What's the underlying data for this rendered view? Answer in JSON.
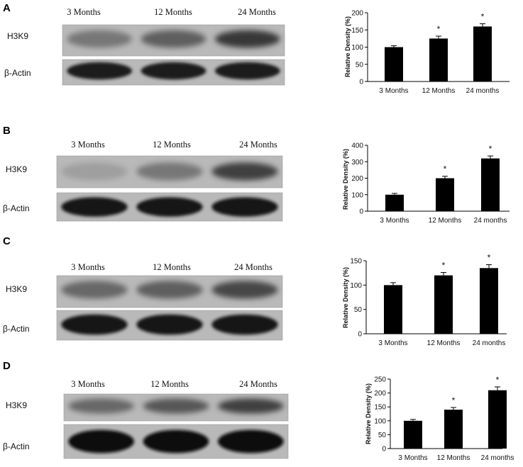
{
  "panels": [
    {
      "letter": "A",
      "blot": {
        "lanes": [
          "3 Months",
          "12 Months",
          "24 Months"
        ],
        "rows": [
          "H3K9",
          "β-Actin"
        ],
        "band_intensity": {
          "H3K9": [
            0.35,
            0.5,
            0.75
          ],
          "β-Actin": [
            0.9,
            0.9,
            0.9
          ]
        }
      }
    },
    {
      "letter": "B",
      "blot": {
        "lanes": [
          "3 Months",
          "12 Months",
          "24 Months"
        ],
        "rows": [
          "H3K9",
          "β-Actin"
        ],
        "band_intensity": {
          "H3K9": [
            0.1,
            0.35,
            0.7
          ],
          "β-Actin": [
            0.95,
            0.95,
            0.95
          ]
        }
      }
    },
    {
      "letter": "C",
      "blot": {
        "lanes": [
          "3 Months",
          "12 Months",
          "24 Months"
        ],
        "rows": [
          "H3K9",
          "β-Actin"
        ],
        "band_intensity": {
          "H3K9": [
            0.45,
            0.5,
            0.65
          ],
          "β-Actin": [
            0.95,
            0.95,
            0.95
          ]
        }
      }
    },
    {
      "letter": "D",
      "blot": {
        "lanes": [
          "3 Months",
          "12 Months",
          "24 Months"
        ],
        "rows": [
          "H3K9",
          "β-Actin"
        ],
        "band_intensity": {
          "H3K9": [
            0.45,
            0.55,
            0.7
          ],
          "β-Actin": [
            1.0,
            1.0,
            1.0
          ]
        }
      }
    }
  ],
  "chart_data": [
    {
      "type": "bar",
      "panel": "A",
      "categories": [
        "3 Months",
        "12 Months",
        "24 months"
      ],
      "values": [
        100,
        125,
        160
      ],
      "errors": [
        4,
        7,
        8
      ],
      "significance": [
        "",
        "*",
        "*"
      ],
      "ylabel": "Relative Density (%)",
      "ylim": [
        0,
        200
      ],
      "yticks": [
        0,
        50,
        100,
        150,
        200
      ],
      "grid": false
    },
    {
      "type": "bar",
      "panel": "B",
      "categories": [
        "3 Months",
        "12 Months",
        "24 months"
      ],
      "values": [
        100,
        200,
        320
      ],
      "errors": [
        8,
        12,
        15
      ],
      "significance": [
        "",
        "*",
        "*"
      ],
      "ylabel": "Relative Density (%)",
      "ylim": [
        0,
        400
      ],
      "yticks": [
        0,
        100,
        200,
        300,
        400
      ],
      "grid": false
    },
    {
      "type": "bar",
      "panel": "C",
      "categories": [
        "3 Months",
        "12 Months",
        "24 months"
      ],
      "values": [
        100,
        120,
        135
      ],
      "errors": [
        5,
        6,
        7
      ],
      "significance": [
        "",
        "*",
        "*"
      ],
      "ylabel": "Relative Density (%)",
      "ylim": [
        0,
        150
      ],
      "yticks": [
        0,
        50,
        100,
        150
      ],
      "grid": false
    },
    {
      "type": "bar",
      "panel": "D",
      "categories": [
        "3 Months",
        "12 Months",
        "24 months"
      ],
      "values": [
        100,
        140,
        210
      ],
      "errors": [
        5,
        8,
        12
      ],
      "significance": [
        "",
        "*",
        "*"
      ],
      "ylabel": "Relative Density (%)",
      "ylim": [
        0,
        250
      ],
      "yticks": [
        0,
        50,
        100,
        150,
        200,
        250
      ],
      "grid": false
    }
  ]
}
